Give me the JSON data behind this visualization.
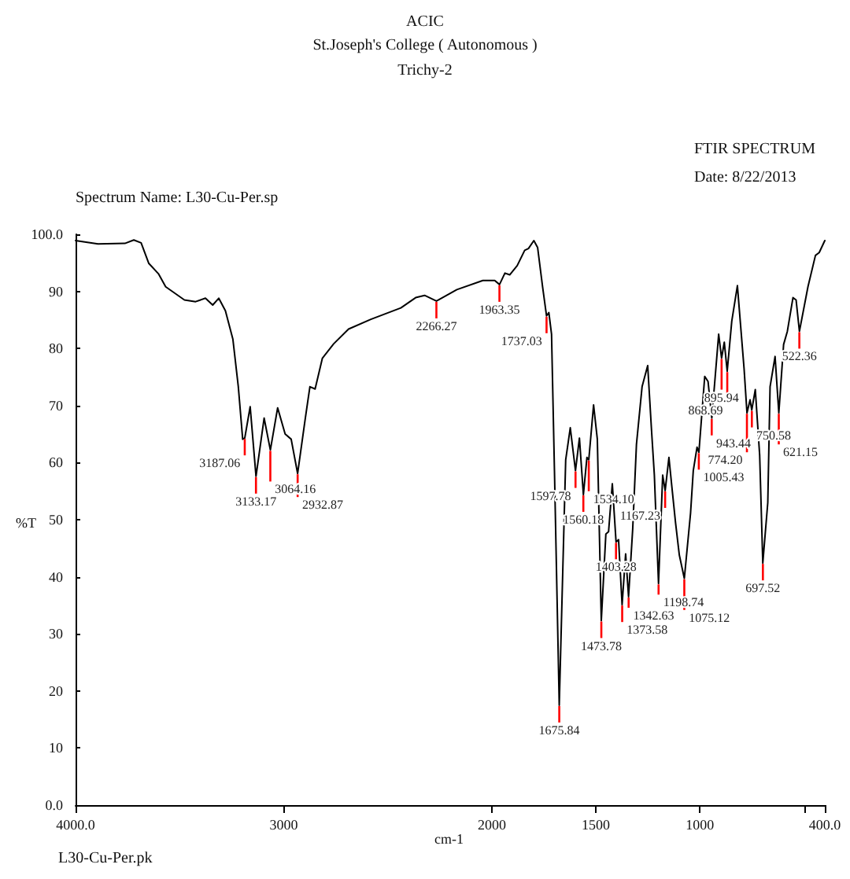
{
  "chart_data": {
    "type": "line",
    "title": "ACIC",
    "subtitle": "St.Joseph's College ( Autonomous )",
    "xlabel": "cm-1",
    "ylabel": "%T",
    "x": [
      4000,
      3892,
      3763,
      3720,
      3685,
      3648,
      3602,
      3567,
      3477,
      3423,
      3376,
      3341,
      3312,
      3280,
      3244,
      3218,
      3197,
      3187,
      3161,
      3133,
      3094,
      3064,
      3029,
      2993,
      2964,
      2933,
      2896,
      2874,
      2849,
      2814,
      2760,
      2688,
      2581,
      2437,
      2366,
      2323,
      2266,
      2168,
      2043,
      1986,
      1963,
      1937,
      1914,
      1878,
      1842,
      1824,
      1798,
      1780,
      1756,
      1737,
      1726,
      1713,
      1699,
      1676,
      1645,
      1623,
      1598,
      1579,
      1560,
      1543,
      1534,
      1511,
      1493,
      1474,
      1452,
      1439,
      1421,
      1403,
      1391,
      1374,
      1357,
      1343,
      1323,
      1305,
      1278,
      1251,
      1233,
      1219,
      1199,
      1179,
      1167,
      1149,
      1135,
      1117,
      1099,
      1075,
      1045,
      1032,
      1014,
      1005,
      977,
      961,
      943,
      910,
      896,
      883,
      869,
      847,
      820,
      788,
      774,
      759,
      751,
      734,
      713,
      698,
      674,
      663,
      639,
      621,
      598,
      580,
      553,
      538,
      522,
      481,
      445,
      427,
      400
    ],
    "series": [
      {
        "color": "#000000",
        "values": [
          98.9,
          98.3,
          98.4,
          99.0,
          98.5,
          94.9,
          93.1,
          90.8,
          88.5,
          88.2,
          88.8,
          87.6,
          88.8,
          86.6,
          81.6,
          73.3,
          64.1,
          64.3,
          69.8,
          57.6,
          67.8,
          62.2,
          69.6,
          65.0,
          64.1,
          58.1,
          67.8,
          73.3,
          72.9,
          78.3,
          80.8,
          83.4,
          85.1,
          87.1,
          88.9,
          89.3,
          88.3,
          90.3,
          91.9,
          91.9,
          91.2,
          93.2,
          92.9,
          94.5,
          97.2,
          97.5,
          98.9,
          97.7,
          90.8,
          85.7,
          86.3,
          82.5,
          58.6,
          17.5,
          60.5,
          66.1,
          58.6,
          64.3,
          54.4,
          60.9,
          60.5,
          70.1,
          64.1,
          32.3,
          47.5,
          47.9,
          56.3,
          46.1,
          46.5,
          35.1,
          44.0,
          36.5,
          48.4,
          63.2,
          73.3,
          77.0,
          65.9,
          57.8,
          38.8,
          57.8,
          55.1,
          60.9,
          55.8,
          49.4,
          43.8,
          39.7,
          51.2,
          58.6,
          62.7,
          61.8,
          75.1,
          74.2,
          67.8,
          82.5,
          78.3,
          81.1,
          76.0,
          84.8,
          91.0,
          76.5,
          68.7,
          71.0,
          69.2,
          72.8,
          61.3,
          42.4,
          53.0,
          73.3,
          78.6,
          68.7,
          80.7,
          83.0,
          88.9,
          88.5,
          83.0,
          90.8,
          96.3,
          96.8,
          98.9
        ]
      }
    ],
    "xlim": [
      4000,
      400
    ],
    "xticks": [
      {
        "value": 4000,
        "label": "4000.0"
      },
      3000,
      2000,
      1500,
      1000,
      {
        "value": 500,
        "label": null
      },
      {
        "value": 400,
        "label": "400.0"
      }
    ],
    "ylim": [
      0,
      100
    ],
    "yticks": [
      {
        "value": 0,
        "label": "0.0"
      },
      10,
      20,
      30,
      40,
      50,
      60,
      70,
      80,
      90,
      {
        "value": 100,
        "label": "100.0"
      }
    ],
    "grid": false,
    "marker": "none",
    "line_style": "solid",
    "annotations": [
      "Trichy-2",
      "FTIR SPECTRUM",
      "Date: 8/22/2013",
      "Spectrum Name: L30-Cu-Per.sp",
      "L30-Cu-Per.pk",
      {
        "text": "3187.06",
        "x": 3187.06,
        "y": 64.3
      },
      {
        "text": "3133.17",
        "x": 3133.17,
        "y": 57.6
      },
      {
        "text": "3064.16",
        "x": 3064.16,
        "y": 62.2
      },
      {
        "text": "2932.87",
        "x": 2932.87,
        "y": 58.1
      },
      {
        "text": "2266.27",
        "x": 2266.27,
        "y": 88.3
      },
      {
        "text": "1963.35",
        "x": 1963.35,
        "y": 91.2
      },
      {
        "text": "1737.03",
        "x": 1737.03,
        "y": 85.7
      },
      {
        "text": "1675.84",
        "x": 1675.84,
        "y": 17.5
      },
      {
        "text": "1597.78",
        "x": 1597.78,
        "y": 58.6
      },
      {
        "text": "1560.18",
        "x": 1560.18,
        "y": 54.4
      },
      {
        "text": "1534.10",
        "x": 1534.1,
        "y": 60.5
      },
      {
        "text": "1473.78",
        "x": 1473.78,
        "y": 32.3
      },
      {
        "text": "1403.28",
        "x": 1403.28,
        "y": 46.1
      },
      {
        "text": "1373.58",
        "x": 1373.58,
        "y": 35.1
      },
      {
        "text": "1342.63",
        "x": 1342.63,
        "y": 36.5
      },
      {
        "text": "1198.74",
        "x": 1198.74,
        "y": 38.8
      },
      {
        "text": "1167.23",
        "x": 1167.23,
        "y": 55.1
      },
      {
        "text": "1075.12",
        "x": 1075.12,
        "y": 39.7
      },
      {
        "text": "1005.43",
        "x": 1005.43,
        "y": 61.8
      },
      {
        "text": "943.44",
        "x": 943.44,
        "y": 67.8
      },
      {
        "text": "895.94",
        "x": 895.94,
        "y": 78.3
      },
      {
        "text": "868.69",
        "x": 868.69,
        "y": 76.0
      },
      {
        "text": "774.20",
        "x": 774.2,
        "y": 68.7
      },
      {
        "text": "750.58",
        "x": 750.58,
        "y": 69.2
      },
      {
        "text": "697.52",
        "x": 697.52,
        "y": 42.4
      },
      {
        "text": "621.15",
        "x": 621.15,
        "y": 68.7
      },
      {
        "text": "522.36",
        "x": 522.36,
        "y": 83.0
      }
    ]
  }
}
